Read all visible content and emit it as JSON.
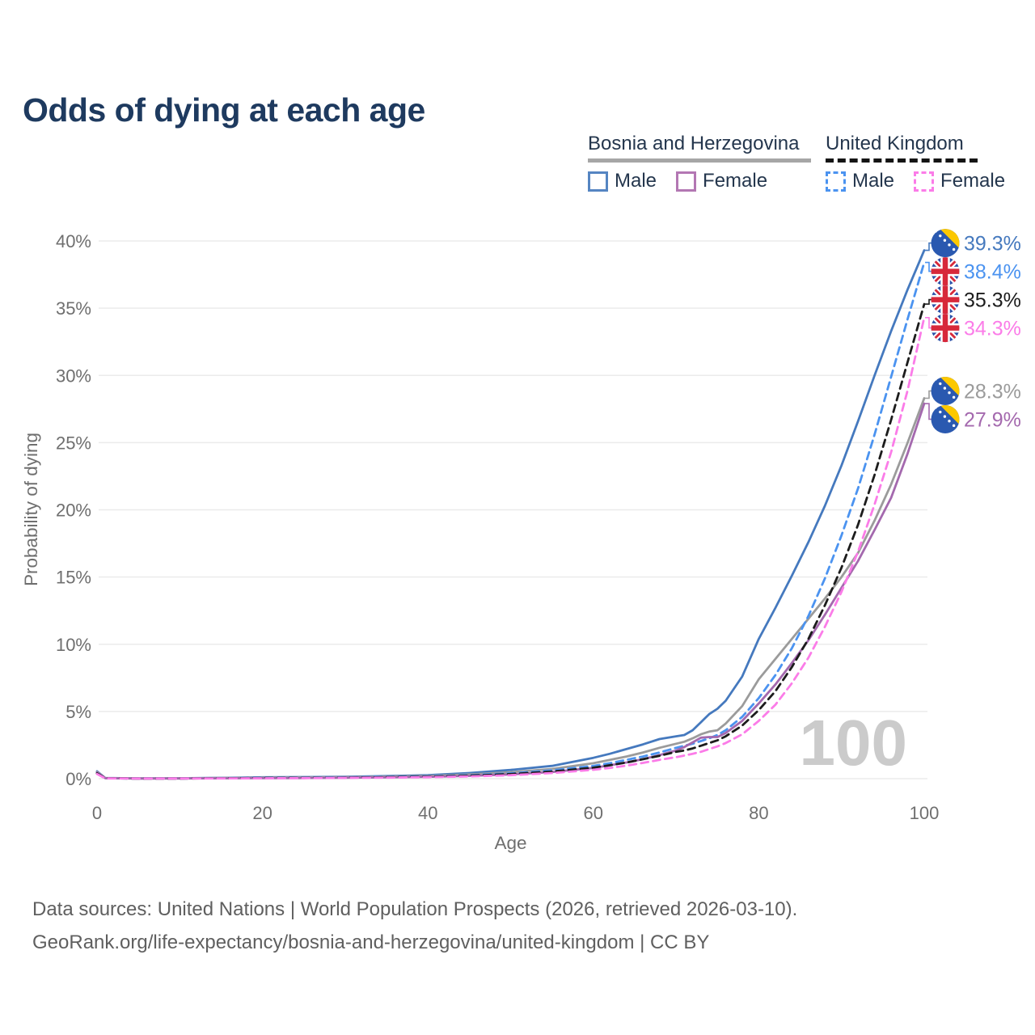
{
  "title": "Odds of dying at each age",
  "legend": {
    "groups": [
      {
        "name": "Bosnia and Herzegovina",
        "line_style": "solid",
        "line_color": "#a6a6a6",
        "items": [
          {
            "label": "Male",
            "color": "#5585c2",
            "style": "solid"
          },
          {
            "label": "Female",
            "color": "#b377b3",
            "style": "solid"
          }
        ]
      },
      {
        "name": "United Kingdom",
        "line_style": "dashed",
        "line_color": "#141414",
        "items": [
          {
            "label": "Male",
            "color": "#4b93f0",
            "style": "dashed"
          },
          {
            "label": "Female",
            "color": "#fb7ce8",
            "style": "dashed"
          }
        ]
      }
    ]
  },
  "watermark": "100",
  "footer": {
    "line1": "Data sources: United Nations | World Population Prospects (2026, retrieved 2026-03-10).",
    "line2": "GeoRank.org/life-expectancy/bosnia-and-herzegovina/united-kingdom | CC BY"
  },
  "chart_data": {
    "type": "line",
    "title": "Odds of dying at each age",
    "xlabel": "Age",
    "ylabel": "Probability of dying",
    "xlim": [
      0,
      100
    ],
    "ylim_pct": [
      0,
      40
    ],
    "x_ticks": [
      0,
      20,
      40,
      60,
      80,
      100
    ],
    "y_ticks_pct": [
      0,
      5,
      10,
      15,
      20,
      25,
      30,
      35,
      40
    ],
    "grid": "horizontal",
    "legend_position": "top-right",
    "ages": [
      0,
      1,
      5,
      10,
      15,
      20,
      25,
      30,
      35,
      40,
      45,
      50,
      55,
      60,
      62,
      64,
      66,
      68,
      70,
      71,
      72,
      73,
      74,
      75,
      76,
      78,
      80,
      82,
      84,
      86,
      88,
      90,
      92,
      94,
      96,
      98,
      100
    ],
    "series": [
      {
        "id": "bih-male",
        "name": "Bosnia and Herzegovina — Male",
        "country": "ba",
        "style": "solid",
        "color": "#4579be",
        "end_label": "39.3%",
        "end_value_pct": 39.3,
        "values": [
          0.55,
          0.05,
          0.02,
          0.03,
          0.06,
          0.1,
          0.12,
          0.14,
          0.19,
          0.26,
          0.42,
          0.65,
          0.95,
          1.55,
          1.85,
          2.2,
          2.55,
          2.95,
          3.15,
          3.25,
          3.6,
          4.2,
          4.8,
          5.2,
          5.8,
          7.6,
          10.4,
          12.7,
          15.1,
          17.6,
          20.3,
          23.3,
          26.6,
          30.0,
          33.3,
          36.4,
          39.3
        ]
      },
      {
        "id": "uk-male",
        "name": "United Kingdom — Male",
        "country": "uk",
        "style": "dashed",
        "color": "#4b93f0",
        "end_label": "38.4%",
        "end_value_pct": 38.4,
        "values": [
          0.45,
          0.03,
          0.01,
          0.01,
          0.04,
          0.06,
          0.08,
          0.1,
          0.13,
          0.17,
          0.26,
          0.4,
          0.62,
          0.95,
          1.15,
          1.4,
          1.65,
          1.95,
          2.3,
          2.45,
          2.6,
          2.8,
          3.0,
          3.25,
          3.6,
          4.6,
          6.0,
          7.7,
          9.7,
          12.1,
          14.9,
          18.1,
          21.6,
          25.6,
          29.9,
          34.2,
          38.4
        ]
      },
      {
        "id": "uk-total",
        "name": "United Kingdom",
        "country": "uk",
        "style": "dashed",
        "color": "#1c1c1c",
        "end_label": "35.3%",
        "end_value_pct": 35.3,
        "values": [
          0.4,
          0.03,
          0.01,
          0.01,
          0.03,
          0.05,
          0.06,
          0.08,
          0.11,
          0.14,
          0.22,
          0.34,
          0.53,
          0.82,
          1.0,
          1.2,
          1.45,
          1.7,
          2.0,
          2.1,
          2.25,
          2.45,
          2.65,
          2.85,
          3.15,
          3.95,
          5.1,
          6.5,
          8.3,
          10.4,
          12.9,
          15.7,
          18.9,
          22.6,
          26.7,
          31.0,
          35.3
        ]
      },
      {
        "id": "uk-female",
        "name": "United Kingdom — Female",
        "country": "uk",
        "style": "dashed",
        "color": "#fb7ce8",
        "end_label": "34.3%",
        "end_value_pct": 34.3,
        "values": [
          0.35,
          0.02,
          0.01,
          0.01,
          0.02,
          0.03,
          0.04,
          0.06,
          0.08,
          0.11,
          0.17,
          0.26,
          0.42,
          0.66,
          0.8,
          0.97,
          1.17,
          1.4,
          1.6,
          1.72,
          1.85,
          2.0,
          2.2,
          2.4,
          2.65,
          3.3,
          4.3,
          5.5,
          7.1,
          9.0,
          11.3,
          13.9,
          16.9,
          20.4,
          24.3,
          28.9,
          34.3
        ]
      },
      {
        "id": "bih-total",
        "name": "Bosnia and Herzegovina",
        "country": "ba",
        "style": "solid",
        "color": "#9b9b9b",
        "end_label": "28.3%",
        "end_value_pct": 28.3,
        "values": [
          0.5,
          0.04,
          0.02,
          0.02,
          0.05,
          0.07,
          0.09,
          0.11,
          0.15,
          0.2,
          0.31,
          0.48,
          0.72,
          1.15,
          1.4,
          1.65,
          1.95,
          2.3,
          2.6,
          2.75,
          3.0,
          3.3,
          3.5,
          3.6,
          4.1,
          5.4,
          7.4,
          8.9,
          10.4,
          11.9,
          13.4,
          15.0,
          16.8,
          19.2,
          21.9,
          25.0,
          28.3
        ]
      },
      {
        "id": "bih-female",
        "name": "Bosnia and Herzegovina — Female",
        "country": "ba",
        "style": "solid",
        "color": "#a469ae",
        "end_label": "27.9%",
        "end_value_pct": 27.9,
        "values": [
          0.45,
          0.04,
          0.01,
          0.02,
          0.03,
          0.04,
          0.05,
          0.07,
          0.1,
          0.14,
          0.21,
          0.32,
          0.5,
          0.8,
          1.0,
          1.2,
          1.45,
          1.75,
          2.1,
          2.35,
          2.7,
          3.05,
          3.1,
          3.1,
          3.4,
          4.3,
          5.6,
          7.0,
          8.6,
          10.3,
          12.2,
          14.2,
          16.2,
          18.5,
          20.9,
          24.2,
          27.9
        ]
      }
    ]
  }
}
